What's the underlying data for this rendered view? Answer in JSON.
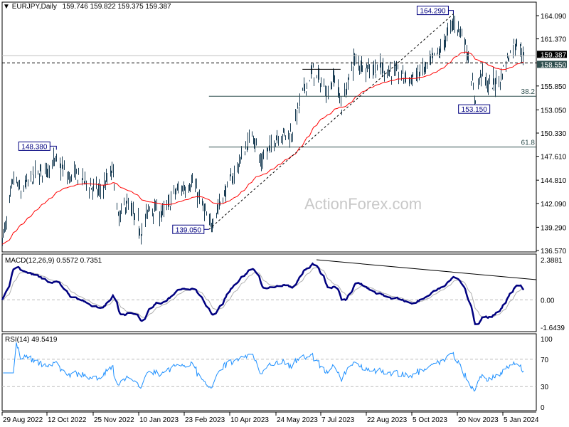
{
  "header": {
    "symbol": "EURJPY,Daily",
    "ohlc": "159.746 159.822 159.375 159.387"
  },
  "watermark": "ActionForex.com",
  "colors": {
    "bars": "#1b3e55",
    "ma": "#ff0000",
    "macd": "#000080",
    "signal": "#b0b0b0",
    "rsi": "#1e90ff",
    "label_box": "#000080"
  },
  "chart_data": {
    "type": "ohlc",
    "symbol": "EURJPY",
    "timeframe": "Daily",
    "ylim": [
      136.57,
      164.09
    ],
    "y_ticks": [
      "164.090",
      "161.370",
      "158.550",
      "155.850",
      "153.050",
      "150.330",
      "147.610",
      "144.810",
      "142.090",
      "139.290",
      "136.570"
    ],
    "x_ticks": [
      {
        "label": "29 Aug 2022",
        "date": "2022-08-29"
      },
      {
        "label": "12 Oct 2022",
        "date": "2022-10-12"
      },
      {
        "label": "25 Nov 2022",
        "date": "2022-11-25"
      },
      {
        "label": "10 Jan 2023",
        "date": "2023-01-10"
      },
      {
        "label": "23 Feb 2023",
        "date": "2023-02-23"
      },
      {
        "label": "10 Apr 2023",
        "date": "2023-04-10"
      },
      {
        "label": "24 May 2023",
        "date": "2023-05-24"
      },
      {
        "label": "7 Jul 2023",
        "date": "2023-07-07"
      },
      {
        "label": "22 Aug 2023",
        "date": "2023-08-22"
      },
      {
        "label": "5 Oct 2023",
        "date": "2023-10-05"
      },
      {
        "label": "20 Nov 2023",
        "date": "2023-11-20"
      },
      {
        "label": "5 Jan 2024",
        "date": "2024-01-05"
      }
    ],
    "last_close": "159.387",
    "close_path": [
      [
        "2022-08-29",
        138.0
      ],
      [
        "2022-09-02",
        139.7
      ],
      [
        "2022-09-09",
        145.1
      ],
      [
        "2022-09-16",
        143.4
      ],
      [
        "2022-09-27",
        145.1
      ],
      [
        "2022-10-21",
        147.0
      ],
      [
        "2022-11-01",
        145.1
      ],
      [
        "2022-11-11",
        145.4
      ],
      [
        "2022-11-21",
        144.2
      ],
      [
        "2022-12-01",
        143.4
      ],
      [
        "2022-12-15",
        145.9
      ],
      [
        "2022-12-20",
        140.1
      ],
      [
        "2022-12-28",
        142.2
      ],
      [
        "2023-01-13",
        138.8
      ],
      [
        "2023-01-20",
        141.7
      ],
      [
        "2023-02-03",
        140.9
      ],
      [
        "2023-02-14",
        143.4
      ],
      [
        "2023-03-03",
        144.6
      ],
      [
        "2023-03-16",
        140.9
      ],
      [
        "2023-03-20",
        139.3
      ],
      [
        "2023-03-30",
        142.0
      ],
      [
        "2023-04-14",
        145.5
      ],
      [
        "2023-05-02",
        150.5
      ],
      [
        "2023-05-09",
        146.7
      ],
      [
        "2023-05-25",
        150.1
      ],
      [
        "2023-06-08",
        150.3
      ],
      [
        "2023-06-19",
        155.1
      ],
      [
        "2023-06-29",
        157.6
      ],
      [
        "2023-07-13",
        155.1
      ],
      [
        "2023-07-21",
        157.0
      ],
      [
        "2023-07-28",
        153.4
      ],
      [
        "2023-08-09",
        158.8
      ],
      [
        "2023-08-25",
        158.0
      ],
      [
        "2023-09-12",
        157.7
      ],
      [
        "2023-10-03",
        156.7
      ],
      [
        "2023-10-20",
        158.0
      ],
      [
        "2023-11-03",
        160.1
      ],
      [
        "2023-11-16",
        163.4
      ],
      [
        "2023-11-24",
        162.2
      ],
      [
        "2023-12-01",
        159.3
      ],
      [
        "2023-12-07",
        154.2
      ],
      [
        "2023-12-14",
        157.5
      ],
      [
        "2023-12-21",
        155.8
      ],
      [
        "2024-01-02",
        156.7
      ],
      [
        "2024-01-08",
        158.8
      ],
      [
        "2024-01-19",
        161.3
      ],
      [
        "2024-01-26",
        159.387
      ]
    ],
    "annotations": [
      {
        "label": "148.380",
        "price": 148.38,
        "date": "2022-10-21"
      },
      {
        "label": "139.050",
        "price": 139.05,
        "date": "2023-03-20"
      },
      {
        "label": "164.290",
        "price": 164.29,
        "date": "2023-11-16"
      },
      {
        "label": "153.150",
        "price": 153.15,
        "date": "2023-12-07"
      }
    ],
    "levels": [
      {
        "label": "159.387",
        "price": 159.387,
        "style": "current"
      },
      {
        "label": "158.550",
        "price": 158.55,
        "style": "dashed"
      }
    ],
    "fibonacci": [
      {
        "label": "38.2",
        "price": 154.65
      },
      {
        "label": "61.8",
        "price": 148.69
      }
    ],
    "trendline": {
      "from": [
        "2023-03-20",
        139.05
      ],
      "to": [
        "2023-11-16",
        164.29
      ]
    },
    "resistance_segment": {
      "from": "2023-06-19",
      "to": "2023-07-27",
      "price": 157.8
    },
    "macd": {
      "title": "MACD(12,26,9) 0.5572 0.7351",
      "ylim": [
        -1.6439,
        2.3881
      ],
      "ticks": [
        "2.3881",
        "0.00",
        "-1.6439"
      ]
    },
    "rsi": {
      "title": "RSI(14) 49.5419",
      "ylim": [
        0,
        100
      ],
      "ticks": [
        "100",
        "70",
        "30",
        "0"
      ]
    }
  }
}
